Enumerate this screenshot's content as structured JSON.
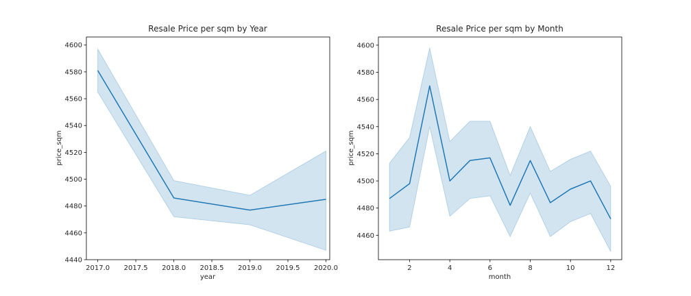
{
  "chart_data": [
    {
      "type": "line",
      "title": "Resale Price per sqm by Year",
      "xlabel": "year",
      "ylabel": "price_sqm",
      "xlim": [
        2016.85,
        2020.05
      ],
      "ylim": [
        4440,
        4606
      ],
      "xticks": [
        "2017.0",
        "2017.5",
        "2018.0",
        "2018.5",
        "2019.0",
        "2019.5",
        "2020.0"
      ],
      "xtick_values": [
        2017.0,
        2017.5,
        2018.0,
        2018.5,
        2019.0,
        2019.5,
        2020.0
      ],
      "yticks": [
        "4440",
        "4460",
        "4480",
        "4500",
        "4520",
        "4540",
        "4560",
        "4580",
        "4600"
      ],
      "ytick_values": [
        4440,
        4460,
        4480,
        4500,
        4520,
        4540,
        4560,
        4580,
        4600
      ],
      "x": [
        2017,
        2018,
        2019,
        2020
      ],
      "series": [
        {
          "values": [
            4581,
            4486,
            4477,
            4485
          ],
          "ci_lower": [
            4565,
            4472,
            4466,
            4447
          ],
          "ci_upper": [
            4597,
            4499,
            4488,
            4521
          ]
        }
      ],
      "line_color": "#1f77b4",
      "band_color": "#1f77b4",
      "grid": false
    },
    {
      "type": "line",
      "title": "Resale Price per sqm by Month",
      "xlabel": "month",
      "ylabel": "price_sqm",
      "xlim": [
        0.45,
        12.55
      ],
      "ylim": [
        4442,
        4606
      ],
      "xticks": [
        "2",
        "4",
        "6",
        "8",
        "10",
        "12"
      ],
      "xtick_values": [
        2,
        4,
        6,
        8,
        10,
        12
      ],
      "yticks": [
        "4460",
        "4480",
        "4500",
        "4520",
        "4540",
        "4560",
        "4580",
        "4600"
      ],
      "ytick_values": [
        4460,
        4480,
        4500,
        4520,
        4540,
        4560,
        4580,
        4600
      ],
      "x": [
        1,
        2,
        3,
        4,
        5,
        6,
        7,
        8,
        9,
        10,
        11,
        12
      ],
      "series": [
        {
          "values": [
            4487,
            4498,
            4570,
            4500,
            4515,
            4517,
            4482,
            4515,
            4484,
            4494,
            4500,
            4472
          ],
          "ci_lower": [
            4463,
            4466,
            4540,
            4474,
            4487,
            4489,
            4459,
            4491,
            4459,
            4470,
            4476,
            4448
          ],
          "ci_upper": [
            4513,
            4532,
            4598,
            4529,
            4544,
            4544,
            4504,
            4540,
            4507,
            4516,
            4522,
            4496
          ]
        }
      ],
      "line_color": "#1f77b4",
      "band_color": "#1f77b4",
      "grid": false
    }
  ]
}
